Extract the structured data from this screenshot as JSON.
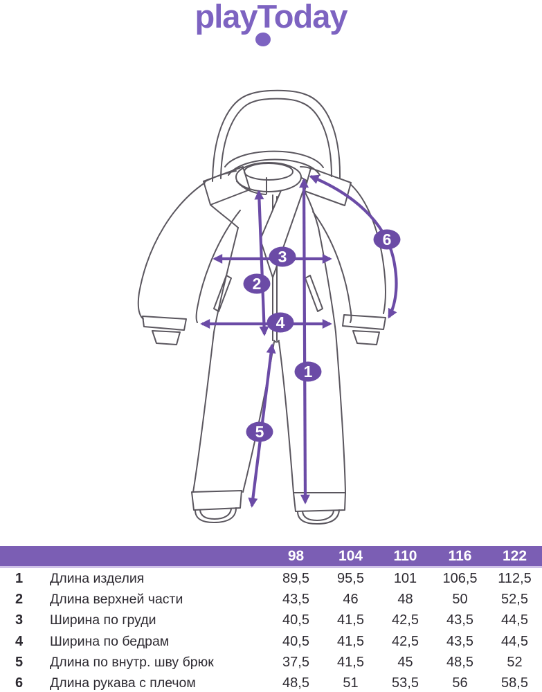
{
  "brand": {
    "logo_text": "playToday"
  },
  "colors": {
    "logo_purple": "#7d63c1",
    "accent_purple": "#6b4ba6",
    "header_purple": "#7b5eb4",
    "line_gray": "#5a565e"
  },
  "diagram": {
    "markers": [
      "1",
      "2",
      "3",
      "4",
      "5",
      "6"
    ]
  },
  "table": {
    "sizes": [
      "98",
      "104",
      "110",
      "116",
      "122"
    ],
    "rows": [
      {
        "num": "1",
        "label": "Длина изделия",
        "values": [
          "89,5",
          "95,5",
          "101",
          "106,5",
          "112,5"
        ]
      },
      {
        "num": "2",
        "label": "Длина верхней части",
        "values": [
          "43,5",
          "46",
          "48",
          "50",
          "52,5"
        ]
      },
      {
        "num": "3",
        "label": "Ширина по груди",
        "values": [
          "40,5",
          "41,5",
          "42,5",
          "43,5",
          "44,5"
        ]
      },
      {
        "num": "4",
        "label": "Ширина по бедрам",
        "values": [
          "40,5",
          "41,5",
          "42,5",
          "43,5",
          "44,5"
        ]
      },
      {
        "num": "5",
        "label": "Длина по внутр. шву брюк",
        "values": [
          "37,5",
          "41,5",
          "45",
          "48,5",
          "52"
        ]
      },
      {
        "num": "6",
        "label": "Длина рукава с плечом",
        "values": [
          "48,5",
          "51",
          "53,5",
          "56",
          "58,5"
        ]
      }
    ]
  }
}
